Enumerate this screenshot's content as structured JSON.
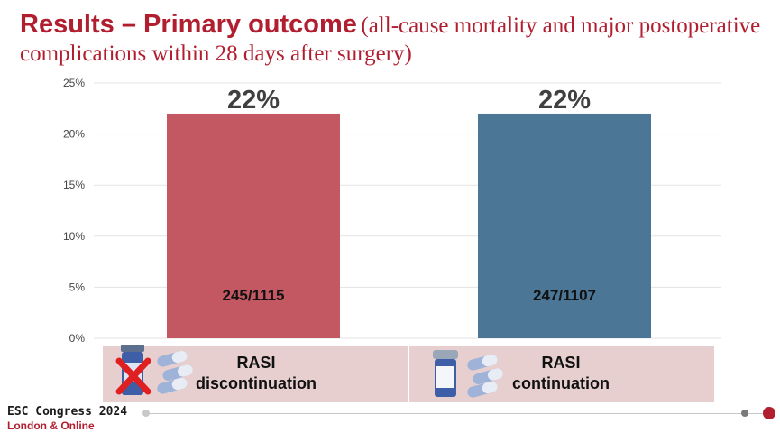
{
  "slide": {
    "title_bold": "Results – Primary outcome",
    "title_rest": "(all-cause mortality and major postoperative complications within 28 days after surgery)"
  },
  "chart_data": {
    "type": "bar",
    "title": "Results – Primary outcome (all-cause mortality and major postoperative complications within 28 days after surgery)",
    "categories": [
      "RASI discontinuation",
      "RASI continuation"
    ],
    "values": [
      22,
      22
    ],
    "value_labels": [
      "22%",
      "22%"
    ],
    "count_labels": [
      "245/1115",
      "247/1107"
    ],
    "colors": [
      "#c45862",
      "#4b7696"
    ],
    "ylim": [
      0,
      25
    ],
    "yticks": [
      0,
      5,
      10,
      15,
      20,
      25
    ],
    "ytick_labels": [
      "0%",
      "5%",
      "10%",
      "15%",
      "20%",
      "25%"
    ],
    "xlabel": "",
    "ylabel": "",
    "grid": true
  },
  "groups": [
    {
      "line1": "RASI",
      "line2": "discontinuation",
      "icon": "crossed-out-pill-bottle-icon"
    },
    {
      "line1": "RASI",
      "line2": "continuation",
      "icon": "pill-bottle-icon"
    }
  ],
  "footer": {
    "congress": "ESC Congress 2024",
    "location": "London & Online",
    "accent": "#b01e2f"
  }
}
